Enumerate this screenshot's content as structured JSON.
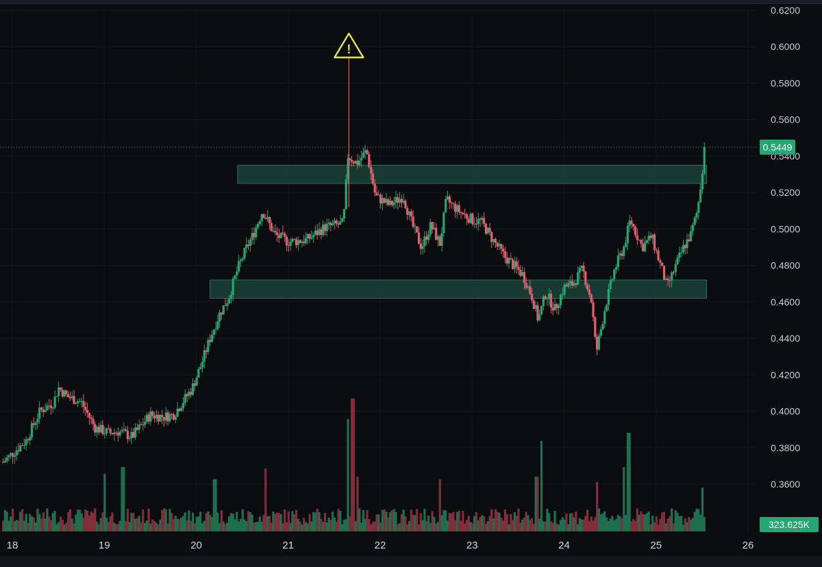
{
  "chart_data": {
    "type": "candlestick",
    "title": "",
    "colors": {
      "up": "#26a672",
      "down": "#e0606e",
      "up_volume": "#1f6e4f",
      "down_volume": "#7e2f3a",
      "zone": "#1b4a3c",
      "warning": "#e3e34d",
      "price_label_bg": "#26a672"
    },
    "grid": true,
    "y_axis": {
      "position": "right",
      "range": [
        0.35,
        0.62
      ],
      "tick_labels": [
        "0.6200",
        "0.6000",
        "0.5800",
        "0.5600",
        "0.5400",
        "0.5200",
        "0.5000",
        "0.4800",
        "0.4600",
        "0.4400",
        "0.4200",
        "0.4000",
        "0.3800",
        "0.3600"
      ],
      "tick_values": [
        0.62,
        0.6,
        0.58,
        0.56,
        0.54,
        0.52,
        0.5,
        0.48,
        0.46,
        0.44,
        0.42,
        0.4,
        0.38,
        0.36
      ]
    },
    "x_axis": {
      "range": [
        17.87,
        26.25
      ],
      "tick_labels": [
        "18",
        "19",
        "20",
        "21",
        "22",
        "23",
        "24",
        "25",
        "26"
      ],
      "tick_values": [
        18,
        19,
        20,
        21,
        22,
        23,
        24,
        25,
        26
      ]
    },
    "current_price": {
      "value": 0.5449,
      "label": "0.5449"
    },
    "volume_label": "323.625K",
    "zones": [
      {
        "name": "resistance-zone",
        "x_from": 20.45,
        "x_to": 25.55,
        "y_from": 0.525,
        "y_to": 0.535
      },
      {
        "name": "support-zone",
        "x_from": 20.15,
        "x_to": 25.55,
        "y_from": 0.462,
        "y_to": 0.472
      }
    ],
    "warning_marker": {
      "x": 21.66,
      "y": 0.596
    },
    "ohlc_anchors": [
      [
        17.9,
        0.372
      ],
      [
        18.15,
        0.384
      ],
      [
        18.3,
        0.4
      ],
      [
        18.45,
        0.405
      ],
      [
        18.5,
        0.413
      ],
      [
        18.6,
        0.408
      ],
      [
        18.75,
        0.405
      ],
      [
        18.9,
        0.391
      ],
      [
        19.05,
        0.388
      ],
      [
        19.15,
        0.389
      ],
      [
        19.3,
        0.386
      ],
      [
        19.5,
        0.398
      ],
      [
        19.65,
        0.397
      ],
      [
        19.75,
        0.398
      ],
      [
        19.95,
        0.412
      ],
      [
        20.05,
        0.425
      ],
      [
        20.15,
        0.44
      ],
      [
        20.25,
        0.453
      ],
      [
        20.35,
        0.462
      ],
      [
        20.45,
        0.478
      ],
      [
        20.55,
        0.49
      ],
      [
        20.62,
        0.497
      ],
      [
        20.72,
        0.51
      ],
      [
        20.85,
        0.497
      ],
      [
        21.0,
        0.493
      ],
      [
        21.2,
        0.494
      ],
      [
        21.4,
        0.501
      ],
      [
        21.6,
        0.503
      ],
      [
        21.65,
        0.54
      ],
      [
        21.75,
        0.536
      ],
      [
        21.85,
        0.543
      ],
      [
        21.95,
        0.518
      ],
      [
        22.1,
        0.513
      ],
      [
        22.25,
        0.518
      ],
      [
        22.35,
        0.502
      ],
      [
        22.45,
        0.49
      ],
      [
        22.55,
        0.502
      ],
      [
        22.65,
        0.492
      ],
      [
        22.72,
        0.516
      ],
      [
        22.85,
        0.51
      ],
      [
        23.0,
        0.505
      ],
      [
        23.1,
        0.504
      ],
      [
        23.2,
        0.496
      ],
      [
        23.35,
        0.485
      ],
      [
        23.45,
        0.48
      ],
      [
        23.55,
        0.475
      ],
      [
        23.65,
        0.463
      ],
      [
        23.72,
        0.45
      ],
      [
        23.8,
        0.465
      ],
      [
        23.9,
        0.456
      ],
      [
        24.0,
        0.468
      ],
      [
        24.1,
        0.47
      ],
      [
        24.2,
        0.478
      ],
      [
        24.3,
        0.46
      ],
      [
        24.35,
        0.432
      ],
      [
        24.45,
        0.458
      ],
      [
        24.55,
        0.478
      ],
      [
        24.65,
        0.49
      ],
      [
        24.72,
        0.505
      ],
      [
        24.85,
        0.49
      ],
      [
        24.95,
        0.496
      ],
      [
        25.05,
        0.48
      ],
      [
        25.12,
        0.468
      ],
      [
        25.2,
        0.478
      ],
      [
        25.3,
        0.49
      ],
      [
        25.38,
        0.497
      ],
      [
        25.45,
        0.51
      ],
      [
        25.5,
        0.53
      ],
      [
        25.52,
        0.545
      ]
    ],
    "volume_spikes": [
      [
        19.0,
        4.2
      ],
      [
        19.2,
        4.7
      ],
      [
        20.2,
        3.8
      ],
      [
        20.75,
        4.6
      ],
      [
        21.65,
        8.2
      ],
      [
        21.7,
        9.7
      ],
      [
        21.75,
        4.0
      ],
      [
        22.65,
        3.8
      ],
      [
        23.7,
        4.0
      ],
      [
        23.75,
        6.6
      ],
      [
        24.35,
        3.6
      ],
      [
        24.65,
        4.7
      ],
      [
        24.7,
        7.2
      ],
      [
        25.5,
        3.2
      ]
    ]
  }
}
